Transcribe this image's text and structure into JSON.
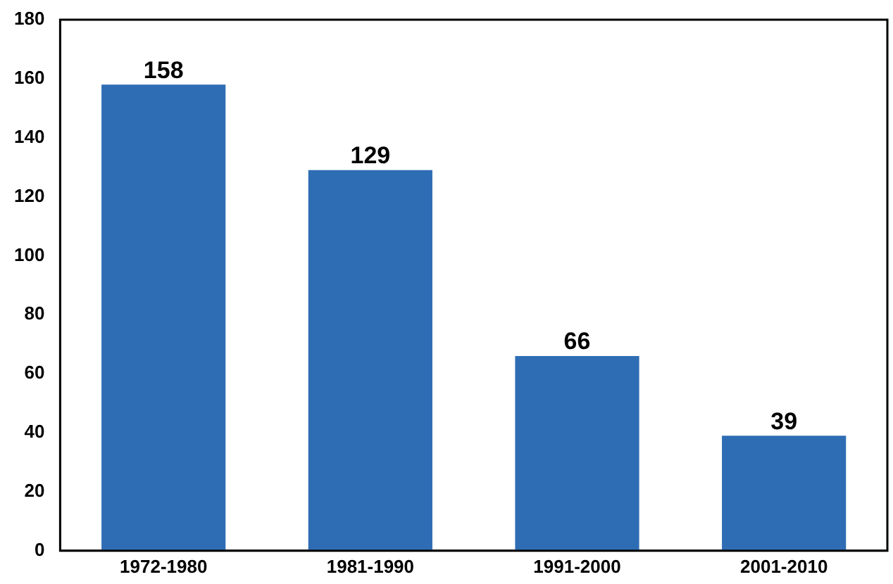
{
  "chart_data": {
    "type": "bar",
    "categories": [
      "1972-1980",
      "1981-1990",
      "1991-2000",
      "2001-2010"
    ],
    "values": [
      158,
      129,
      66,
      39
    ],
    "color": "#2e6db4",
    "ylim": [
      0,
      180
    ],
    "yticks": [
      0,
      20,
      40,
      60,
      80,
      100,
      120,
      140,
      160,
      180
    ],
    "grid": false,
    "data_labels": true
  }
}
